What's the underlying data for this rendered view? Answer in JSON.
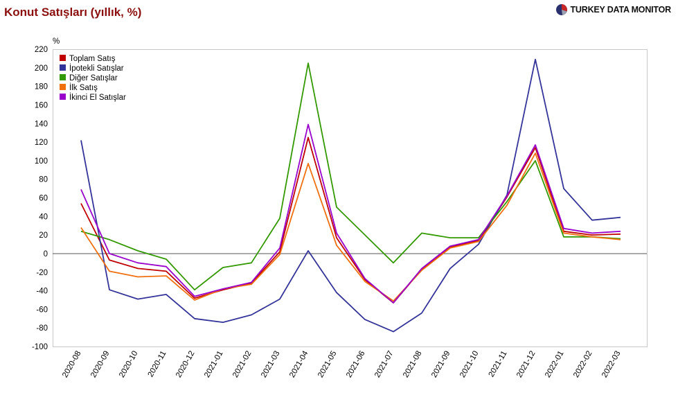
{
  "header": {
    "title": "Konut Satışları (yıllık, %)",
    "brand": "TURKEY DATA MONITOR",
    "brand_icon": "pie-chart-icon"
  },
  "chart_data": {
    "type": "line",
    "title": "Konut Satışları (yıllık, %)",
    "ylabel": "%",
    "xlabel": "",
    "ylim": [
      -100,
      220
    ],
    "yticks": [
      -100,
      -80,
      -60,
      -40,
      -20,
      0,
      20,
      40,
      60,
      80,
      100,
      120,
      140,
      160,
      180,
      200,
      220
    ],
    "grid": false,
    "zero_line": true,
    "legend_position": "top-left",
    "x": [
      "2020-08",
      "2020-09",
      "2020-10",
      "2020-11",
      "2020-12",
      "2021-01",
      "2021-02",
      "2021-03",
      "2021-04",
      "2021-05",
      "2021-06",
      "2021-07",
      "2021-08",
      "2021-09",
      "2021-10",
      "2021-11",
      "2021-12",
      "2022-01",
      "2022-02",
      "2022-03"
    ],
    "series": [
      {
        "name": "Toplam Satış",
        "color": "#c00000",
        "values": [
          54,
          -7,
          -16,
          -19,
          -48,
          -39,
          -32,
          2,
          125,
          17,
          -28,
          -53,
          -17,
          7,
          14,
          61,
          114,
          24,
          20,
          21
        ]
      },
      {
        "name": "İpotekli Satışlar",
        "color": "#333399",
        "values": [
          122,
          -39,
          -49,
          -44,
          -70,
          -74,
          -66,
          -49,
          3,
          -42,
          -71,
          -84,
          -64,
          -16,
          10,
          63,
          209,
          70,
          36,
          39
        ]
      },
      {
        "name": "Diğer Satışlar",
        "color": "#339900",
        "values": [
          24,
          15,
          3,
          -6,
          -39,
          -15,
          -10,
          38,
          205,
          50,
          20,
          -10,
          22,
          17,
          17,
          56,
          100,
          18,
          18,
          16
        ]
      },
      {
        "name": "İlk Satış",
        "color": "#f07010",
        "values": [
          28,
          -19,
          -25,
          -24,
          -50,
          -38,
          -33,
          -1,
          97,
          9,
          -30,
          -51,
          -18,
          6,
          13,
          52,
          108,
          22,
          18,
          15
        ]
      },
      {
        "name": "İkinci El Satışlar",
        "color": "#9900cc",
        "values": [
          69,
          0,
          -10,
          -14,
          -46,
          -38,
          -31,
          6,
          139,
          22,
          -27,
          -53,
          -16,
          8,
          15,
          62,
          117,
          27,
          22,
          24
        ]
      }
    ]
  }
}
